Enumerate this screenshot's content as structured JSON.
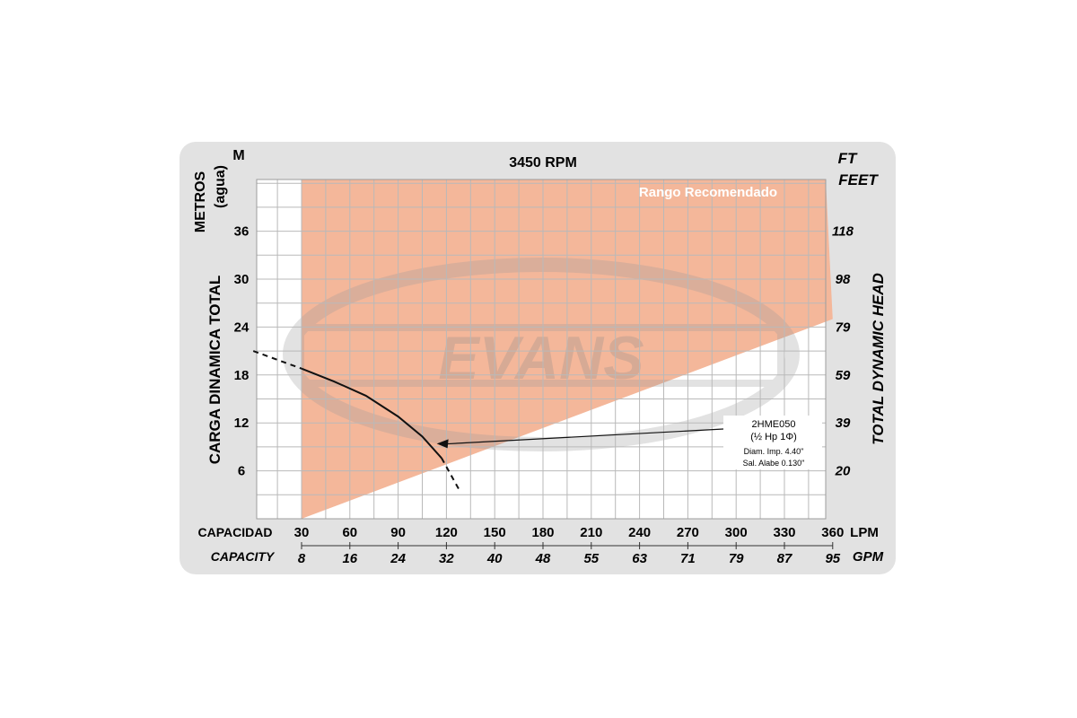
{
  "chart_data": {
    "type": "line",
    "title": "3450 RPM",
    "left_unit": "M",
    "right_unit": "FT",
    "right_unit_word": "FEET",
    "ylabel_left": "CARGA  DINAMICA  TOTAL",
    "ylabel_left_sub": "METROS",
    "ylabel_left_sub2": "(agua)",
    "ylabel_right": "TOTAL   DYNAMIC   HEAD",
    "y_left_ticks": [
      6,
      12,
      18,
      24,
      30,
      36
    ],
    "y_right_ticks": [
      {
        "label": "20",
        "m": 6
      },
      {
        "label": "39",
        "m": 12
      },
      {
        "label": "59",
        "m": 18
      },
      {
        "label": "79",
        "m": 24
      },
      {
        "label": "98",
        "m": 30
      },
      {
        "label": "118",
        "m": 36
      }
    ],
    "ylim": [
      0,
      40
    ],
    "xlim": [
      30,
      360
    ],
    "x_lpm_label": "CAPACIDAD",
    "x_lpm_unit": "LPM",
    "x_lpm_ticks": [
      30,
      60,
      90,
      120,
      150,
      180,
      210,
      240,
      270,
      300,
      330,
      360
    ],
    "x_gpm_label": "CAPACITY",
    "x_gpm_unit": "GPM",
    "x_gpm_ticks": [
      "8",
      "16",
      "24",
      "32",
      "40",
      "48",
      "55",
      "63",
      "71",
      "79",
      "87",
      "95"
    ],
    "recommended_range": {
      "label": "Rango Recomendado",
      "color": "#f4b79a",
      "x_start": 30,
      "lower_boundary": [
        {
          "x": 30,
          "y": 0
        },
        {
          "x": 360,
          "y": 25
        }
      ]
    },
    "series": [
      {
        "name": "2HME050",
        "color": "#111111",
        "points": [
          {
            "x": 30,
            "y": 18.8
          },
          {
            "x": 50,
            "y": 17.2
          },
          {
            "x": 70,
            "y": 15.4
          },
          {
            "x": 90,
            "y": 12.8
          },
          {
            "x": 105,
            "y": 10.3
          },
          {
            "x": 117,
            "y": 7.6
          }
        ],
        "dashed_extensions": [
          [
            {
              "x": 0,
              "y": 21
            },
            {
              "x": 30,
              "y": 18.8
            }
          ],
          [
            {
              "x": 117,
              "y": 7.6
            },
            {
              "x": 128,
              "y": 3.6
            }
          ]
        ]
      }
    ],
    "annotation": {
      "lines": [
        "2HME050",
        "(½ Hp 1Φ)",
        "Diam. Imp. 4.40\"",
        "Sal. Alabe 0.130\""
      ],
      "arrow_target": {
        "x": 114,
        "y": 9.4
      }
    },
    "watermark": "EVANS",
    "grid": true,
    "colors": {
      "card": "#e2e2e2",
      "plot": "#ffffff",
      "grid": "#b9b9b9",
      "range": "#f4b79a",
      "range_text": "#ffffff"
    }
  }
}
